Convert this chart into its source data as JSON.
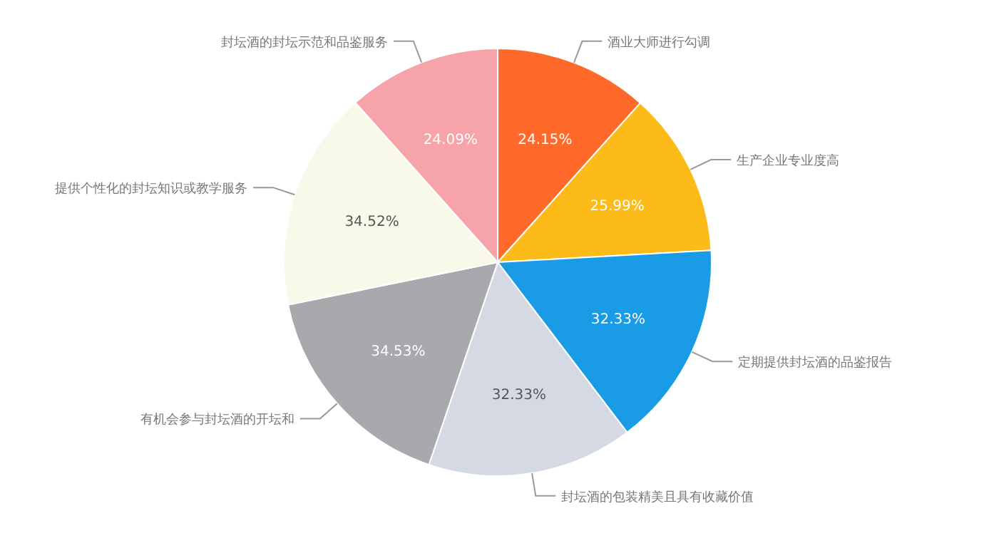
{
  "chart_data": {
    "type": "pie",
    "categories": [
      "酒业大师进行勾调",
      "生产企业专业度高",
      "定期提供封坛酒的品鉴报告",
      "封坛酒的包装精美且具有收藏价值",
      "有机会参与封坛酒的开坛和",
      "提供个性化的封坛知识或教学服务",
      "封坛酒的封坛示范和品鉴服务"
    ],
    "values": [
      24.15,
      25.99,
      32.33,
      32.33,
      34.53,
      34.52,
      24.09
    ],
    "colors": [
      "#ff6a2b",
      "#fdbb1a",
      "#1a9be6",
      "#d5d9e3",
      "#a9a9ad",
      "#f8f9e8",
      "#f7a3aa"
    ],
    "value_labels": [
      "24.15%",
      "25.99%",
      "32.33%",
      "32.33%",
      "34.53%",
      "34.52%",
      "24.09%"
    ]
  }
}
